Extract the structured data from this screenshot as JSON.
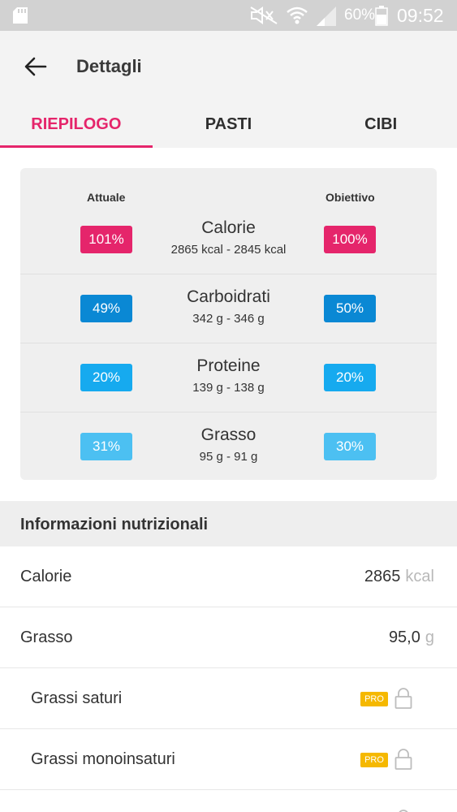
{
  "status_bar": {
    "battery_percent": "60%",
    "time": "09:52",
    "icons": [
      "sd-card-icon",
      "mute-icon",
      "wifi-icon",
      "signal-icon",
      "battery-icon"
    ]
  },
  "appbar": {
    "title": "Dettagli",
    "back_icon": "back-arrow-icon"
  },
  "tabs": [
    {
      "label": "RIEPILOGO",
      "active": true
    },
    {
      "label": "PASTI",
      "active": false
    },
    {
      "label": "CIBI",
      "active": false
    }
  ],
  "summary": {
    "actual_header": "Attuale",
    "goal_header": "Obiettivo",
    "rows": [
      {
        "name": "Calorie",
        "detail": "2865 kcal - 2845 kcal",
        "actual": "101%",
        "goal": "100%",
        "color": "#e5256b"
      },
      {
        "name": "Carboidrati",
        "detail": "342 g - 346 g",
        "actual": "49%",
        "goal": "50%",
        "color": "#0a88d4"
      },
      {
        "name": "Proteine",
        "detail": "139 g - 138 g",
        "actual": "20%",
        "goal": "20%",
        "color": "#16aaef"
      },
      {
        "name": "Grasso",
        "detail": "95 g - 91 g",
        "actual": "31%",
        "goal": "30%",
        "color": "#4cc0f2"
      }
    ]
  },
  "nutrition": {
    "section_title": "Informazioni nutrizionali",
    "rows": [
      {
        "label": "Calorie",
        "value": "2865",
        "unit": "kcal"
      },
      {
        "label": "Grasso",
        "value": "95,0",
        "unit": "g"
      },
      {
        "label": "Grassi saturi",
        "badge": "PRO"
      },
      {
        "label": "Grassi monoinsaturi",
        "badge": "PRO"
      }
    ]
  },
  "colors": {
    "accent": "#e5256b",
    "pro_badge": "#f5b800"
  }
}
